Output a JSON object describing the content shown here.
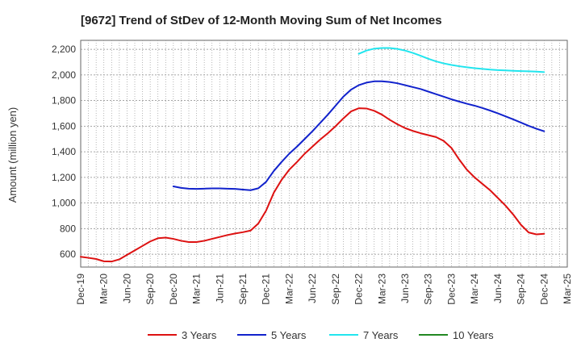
{
  "chart_data": {
    "type": "line",
    "title": "[9672]  Trend of StDev of 12-Month Moving Sum of Net Incomes",
    "ylabel": "Amount (million yen)",
    "xlabel": "",
    "ylim": [
      500,
      2270
    ],
    "y_ticks": [
      600,
      800,
      1000,
      1200,
      1400,
      1600,
      1800,
      2000,
      2200
    ],
    "y_tick_labels": [
      "600",
      "800",
      "1,000",
      "1,200",
      "1,400",
      "1,600",
      "1,800",
      "2,000",
      "2,200"
    ],
    "x_range": [
      "2019-12",
      "2025-03"
    ],
    "x_ticks": [
      "2019-12",
      "2020-03",
      "2020-06",
      "2020-09",
      "2020-12",
      "2021-03",
      "2021-06",
      "2021-09",
      "2021-12",
      "2022-03",
      "2022-06",
      "2022-09",
      "2022-12",
      "2023-03",
      "2023-06",
      "2023-09",
      "2023-12",
      "2024-03",
      "2024-06",
      "2024-09",
      "2024-12",
      "2025-03"
    ],
    "x_tick_labels": [
      "Dec-19",
      "Mar-20",
      "Jun-20",
      "Sep-20",
      "Dec-20",
      "Mar-21",
      "Jun-21",
      "Sep-21",
      "Dec-21",
      "Mar-22",
      "Jun-22",
      "Sep-22",
      "Dec-22",
      "Mar-23",
      "Jun-23",
      "Sep-23",
      "Dec-23",
      "Mar-24",
      "Jun-24",
      "Sep-24",
      "Dec-24",
      "Mar-25"
    ],
    "grid": true,
    "legend_position": "bottom",
    "series": [
      {
        "name": "3 Years",
        "color": "#dd1111",
        "x": [
          "2019-12",
          "2020-01",
          "2020-02",
          "2020-03",
          "2020-04",
          "2020-05",
          "2020-06",
          "2020-07",
          "2020-08",
          "2020-09",
          "2020-10",
          "2020-11",
          "2020-12",
          "2021-01",
          "2021-02",
          "2021-03",
          "2021-04",
          "2021-05",
          "2021-06",
          "2021-07",
          "2021-08",
          "2021-09",
          "2021-10",
          "2021-11",
          "2021-12",
          "2022-01",
          "2022-02",
          "2022-03",
          "2022-04",
          "2022-05",
          "2022-06",
          "2022-07",
          "2022-08",
          "2022-09",
          "2022-10",
          "2022-11",
          "2022-12",
          "2023-01",
          "2023-02",
          "2023-03",
          "2023-04",
          "2023-05",
          "2023-06",
          "2023-07",
          "2023-08",
          "2023-09",
          "2023-10",
          "2023-11",
          "2023-12",
          "2024-01",
          "2024-02",
          "2024-03",
          "2024-04",
          "2024-05",
          "2024-06",
          "2024-07",
          "2024-08",
          "2024-09",
          "2024-10",
          "2024-11",
          "2024-12"
        ],
        "values": [
          580,
          572,
          563,
          545,
          543,
          560,
          595,
          630,
          665,
          700,
          725,
          730,
          720,
          705,
          695,
          695,
          705,
          720,
          735,
          750,
          762,
          772,
          785,
          840,
          940,
          1080,
          1180,
          1260,
          1320,
          1385,
          1440,
          1495,
          1545,
          1600,
          1660,
          1715,
          1740,
          1738,
          1720,
          1690,
          1650,
          1615,
          1585,
          1563,
          1545,
          1530,
          1515,
          1485,
          1430,
          1340,
          1260,
          1200,
          1150,
          1100,
          1040,
          980,
          910,
          830,
          770,
          755,
          760
        ]
      },
      {
        "name": "5 Years",
        "color": "#1122cc",
        "x": [
          "2020-12",
          "2021-01",
          "2021-02",
          "2021-03",
          "2021-04",
          "2021-05",
          "2021-06",
          "2021-07",
          "2021-08",
          "2021-09",
          "2021-10",
          "2021-11",
          "2021-12",
          "2022-01",
          "2022-02",
          "2022-03",
          "2022-04",
          "2022-05",
          "2022-06",
          "2022-07",
          "2022-08",
          "2022-09",
          "2022-10",
          "2022-11",
          "2022-12",
          "2023-01",
          "2023-02",
          "2023-03",
          "2023-04",
          "2023-05",
          "2023-06",
          "2023-07",
          "2023-08",
          "2023-09",
          "2023-10",
          "2023-11",
          "2023-12",
          "2024-01",
          "2024-02",
          "2024-03",
          "2024-04",
          "2024-05",
          "2024-06",
          "2024-07",
          "2024-08",
          "2024-09",
          "2024-10",
          "2024-11",
          "2024-12"
        ],
        "values": [
          1130,
          1118,
          1112,
          1110,
          1112,
          1114,
          1114,
          1112,
          1110,
          1105,
          1100,
          1115,
          1165,
          1250,
          1320,
          1385,
          1440,
          1500,
          1560,
          1625,
          1690,
          1760,
          1830,
          1885,
          1920,
          1940,
          1950,
          1950,
          1945,
          1935,
          1920,
          1905,
          1890,
          1870,
          1850,
          1830,
          1810,
          1792,
          1775,
          1760,
          1742,
          1722,
          1700,
          1677,
          1653,
          1628,
          1603,
          1580,
          1560
        ]
      },
      {
        "name": "7 Years",
        "color": "#22e5ee",
        "x": [
          "2022-12",
          "2023-01",
          "2023-02",
          "2023-03",
          "2023-04",
          "2023-05",
          "2023-06",
          "2023-07",
          "2023-08",
          "2023-09",
          "2023-10",
          "2023-11",
          "2023-12",
          "2024-01",
          "2024-02",
          "2024-03",
          "2024-04",
          "2024-05",
          "2024-06",
          "2024-07",
          "2024-08",
          "2024-09",
          "2024-10",
          "2024-11",
          "2024-12"
        ],
        "values": [
          2165,
          2190,
          2205,
          2210,
          2210,
          2203,
          2190,
          2172,
          2150,
          2126,
          2106,
          2090,
          2078,
          2068,
          2060,
          2053,
          2047,
          2042,
          2038,
          2035,
          2032,
          2030,
          2028,
          2026,
          2022
        ]
      },
      {
        "name": "10 Years",
        "color": "#228822",
        "x": [],
        "values": []
      }
    ]
  }
}
